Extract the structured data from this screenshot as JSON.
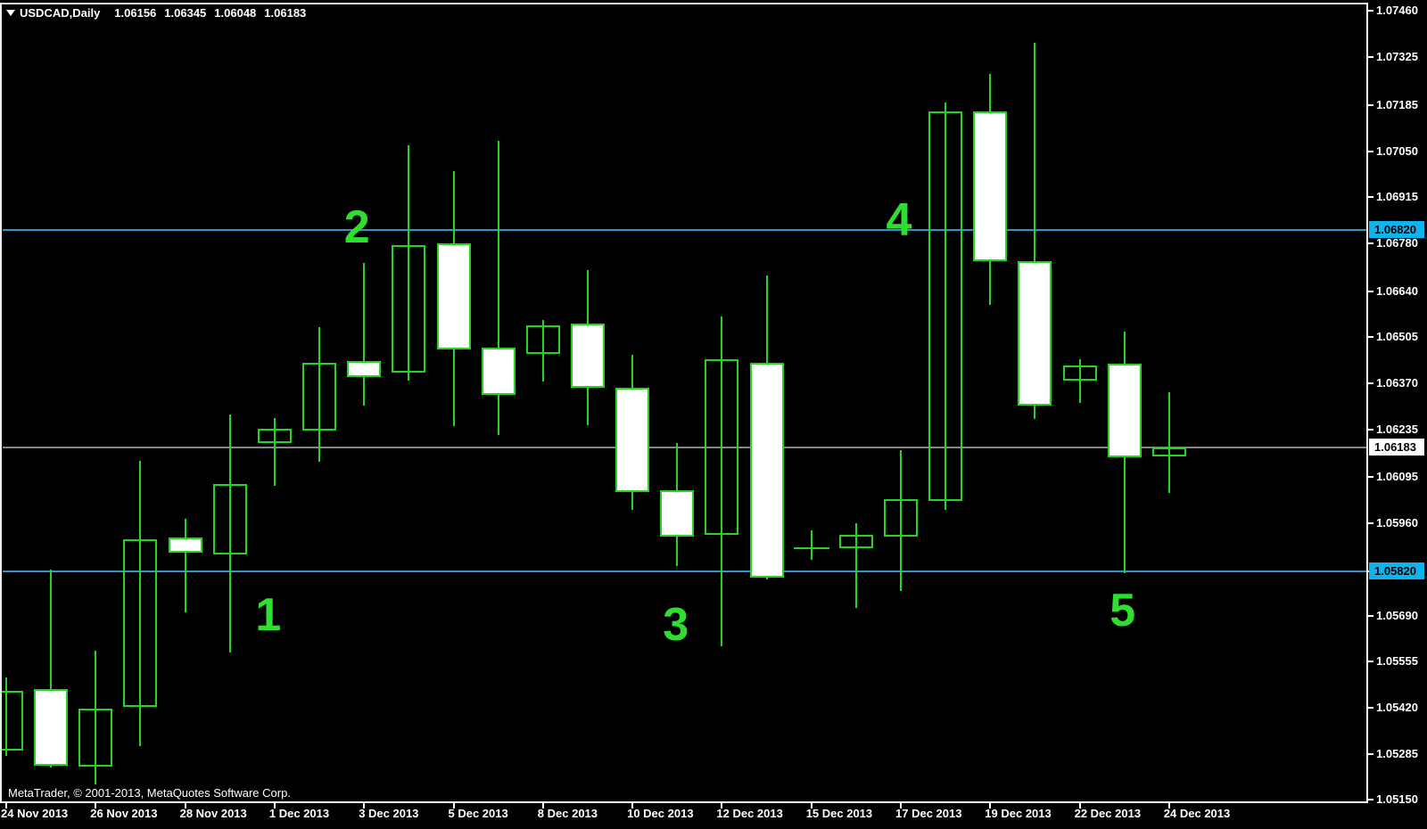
{
  "title": {
    "symbol": "USDCAD,Daily",
    "open": "1.06156",
    "high": "1.06345",
    "low": "1.06048",
    "close": "1.06183"
  },
  "copyright": "MetaTrader, © 2001-2013, MetaQuotes Software Corp.",
  "colors": {
    "background": "#000000",
    "candle_green": "#22d622",
    "wave_label_green": "#2fdf2f",
    "line_blue": "#3193cc",
    "line_gray": "#858585",
    "label_cyan_bg": "#0db4ee",
    "label_white_bg": "#ffffff",
    "axis_text": "#ffffff",
    "body_white": "#ffffff"
  },
  "chart_data": {
    "type": "candlestick",
    "symbol": "USDCAD",
    "timeframe": "Daily",
    "title": "USDCAD,Daily 1.06156 1.06345 1.06048 1.06183",
    "grid": false,
    "legend_position": "none",
    "ylim": [
      1.05151,
      1.07482
    ],
    "y_ticks": [
      1.0746,
      1.07325,
      1.07185,
      1.0705,
      1.06915,
      1.0678,
      1.0664,
      1.06505,
      1.0637,
      1.06235,
      1.06095,
      1.0596,
      1.0582,
      1.0569,
      1.05555,
      1.0542,
      1.05285,
      1.0515
    ],
    "x_ticks": [
      {
        "candle": 0,
        "label": "24 Nov 2013"
      },
      {
        "candle": 2,
        "label": "26 Nov 2013"
      },
      {
        "candle": 4,
        "label": "28 Nov 2013"
      },
      {
        "candle": 6,
        "label": "1 Dec 2013"
      },
      {
        "candle": 8,
        "label": "3 Dec 2013"
      },
      {
        "candle": 10,
        "label": "5 Dec 2013"
      },
      {
        "candle": 12,
        "label": "8 Dec 2013"
      },
      {
        "candle": 14,
        "label": "10 Dec 2013"
      },
      {
        "candle": 16,
        "label": "12 Dec 2013"
      },
      {
        "candle": 18,
        "label": "15 Dec 2013"
      },
      {
        "candle": 20,
        "label": "17 Dec 2013"
      },
      {
        "candle": 22,
        "label": "19 Dec 2013"
      },
      {
        "candle": 24,
        "label": "22 Dec 2013"
      },
      {
        "candle": 26,
        "label": "24 Dec 2013"
      }
    ],
    "candles": [
      {
        "o": 1.05294,
        "h": 1.05508,
        "l": 1.05279,
        "c": 1.05469
      },
      {
        "o": 1.05474,
        "h": 1.05824,
        "l": 1.05245,
        "c": 1.0525
      },
      {
        "o": 1.05247,
        "h": 1.05587,
        "l": 1.05196,
        "c": 1.05417
      },
      {
        "o": 1.05422,
        "h": 1.06143,
        "l": 1.05307,
        "c": 1.05913
      },
      {
        "o": 1.05918,
        "h": 1.05973,
        "l": 1.05699,
        "c": 1.05874
      },
      {
        "o": 1.05868,
        "h": 1.06278,
        "l": 1.05581,
        "c": 1.06075
      },
      {
        "o": 1.06195,
        "h": 1.06268,
        "l": 1.0607,
        "c": 1.06237
      },
      {
        "o": 1.06231,
        "h": 1.06534,
        "l": 1.0614,
        "c": 1.0643
      },
      {
        "o": 1.06435,
        "h": 1.06722,
        "l": 1.06304,
        "c": 1.06388
      },
      {
        "o": 1.06401,
        "h": 1.07067,
        "l": 1.06377,
        "c": 1.06774
      },
      {
        "o": 1.06779,
        "h": 1.06991,
        "l": 1.06244,
        "c": 1.06469
      },
      {
        "o": 1.06474,
        "h": 1.0708,
        "l": 1.06218,
        "c": 1.06336
      },
      {
        "o": 1.06456,
        "h": 1.06555,
        "l": 1.06375,
        "c": 1.06539
      },
      {
        "o": 1.06545,
        "h": 1.06701,
        "l": 1.06247,
        "c": 1.06357
      },
      {
        "o": 1.06357,
        "h": 1.06453,
        "l": 1.05999,
        "c": 1.06051
      },
      {
        "o": 1.06056,
        "h": 1.06195,
        "l": 1.05835,
        "c": 1.05921
      },
      {
        "o": 1.05926,
        "h": 1.06565,
        "l": 1.056,
        "c": 1.0644
      },
      {
        "o": 1.0643,
        "h": 1.06685,
        "l": 1.05795,
        "c": 1.05801
      },
      {
        "o": 1.05887,
        "h": 1.05939,
        "l": 1.05853,
        "c": 1.05887
      },
      {
        "o": 1.05887,
        "h": 1.0596,
        "l": 1.05712,
        "c": 1.05926
      },
      {
        "o": 1.05921,
        "h": 1.06174,
        "l": 1.05762,
        "c": 1.0603
      },
      {
        "o": 1.06025,
        "h": 1.07192,
        "l": 1.05999,
        "c": 1.07166
      },
      {
        "o": 1.07166,
        "h": 1.07275,
        "l": 1.06599,
        "c": 1.06727
      },
      {
        "o": 1.06727,
        "h": 1.07367,
        "l": 1.06265,
        "c": 1.06304
      },
      {
        "o": 1.06377,
        "h": 1.0644,
        "l": 1.06312,
        "c": 1.06422
      },
      {
        "o": 1.06427,
        "h": 1.06521,
        "l": 1.05814,
        "c": 1.06153
      },
      {
        "o": 1.06156,
        "h": 1.06345,
        "l": 1.06048,
        "c": 1.06183
      }
    ],
    "hlines": [
      {
        "price": 1.0682,
        "color": "blue",
        "label": "1.06820",
        "label_style": "cyan"
      },
      {
        "price": 1.06183,
        "color": "gray",
        "label": "1.06183",
        "label_style": "white"
      },
      {
        "price": 1.0582,
        "color": "blue",
        "label": "1.05820",
        "label_style": "cyan"
      }
    ],
    "wave_labels": [
      {
        "text": "1",
        "candle": 5.86,
        "price": 1.05691
      },
      {
        "text": "2",
        "candle": 7.84,
        "price": 1.06826
      },
      {
        "text": "3",
        "candle": 14.97,
        "price": 1.05662
      },
      {
        "text": "4",
        "candle": 19.96,
        "price": 1.06847
      },
      {
        "text": "5",
        "candle": 24.96,
        "price": 1.05704
      }
    ]
  }
}
